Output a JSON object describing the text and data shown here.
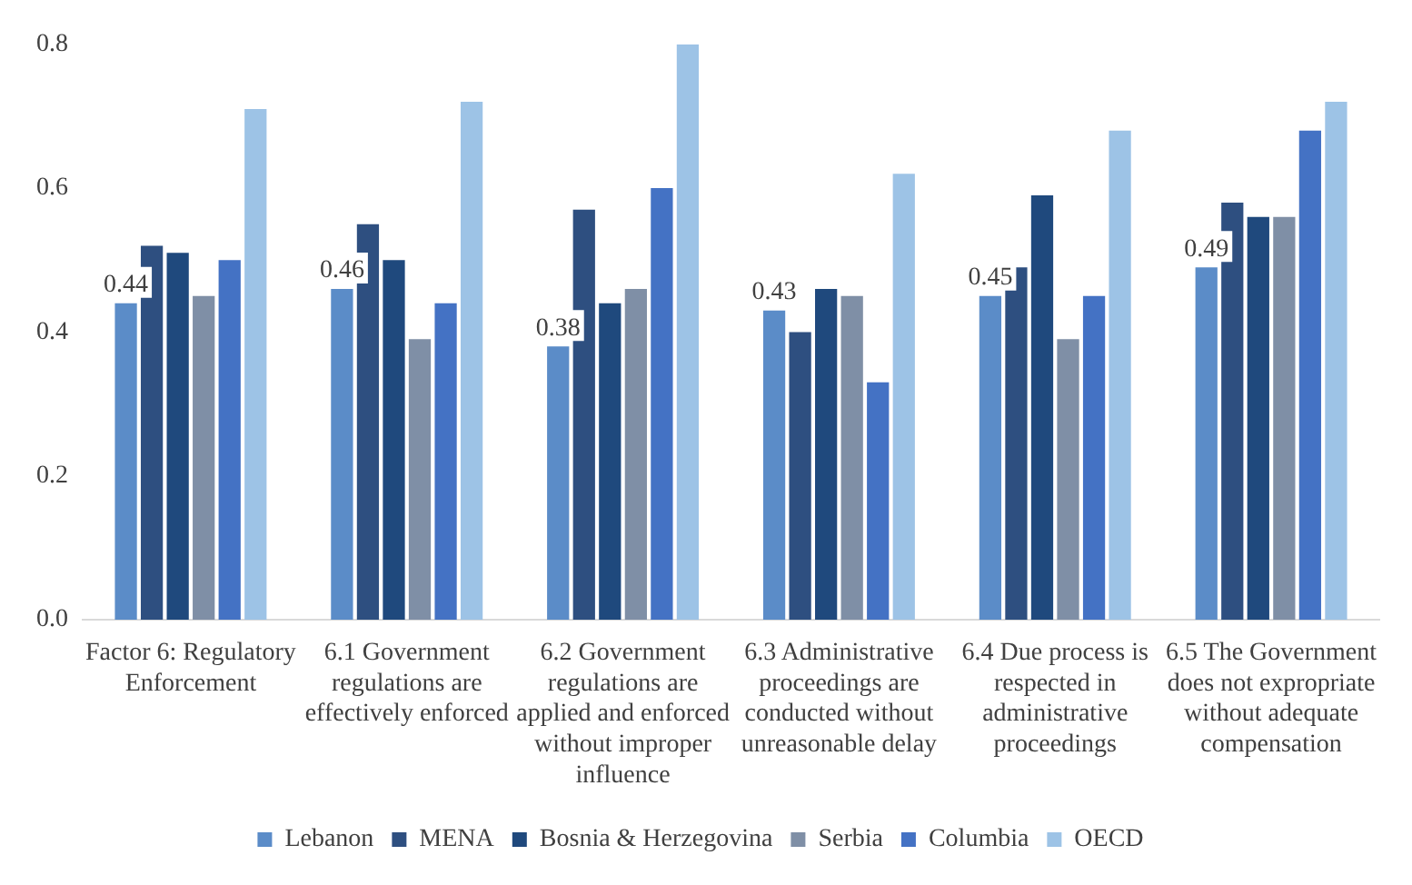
{
  "chart_data": {
    "type": "bar",
    "categories": [
      "Factor 6: Regulatory Enforcement",
      "6.1 Government regulations are effectively enforced",
      "6.2 Government regulations are applied and enforced without improper influence",
      "6.3 Administrative proceedings are conducted without unreasonable delay",
      "6.4 Due process is respected in administrative proceedings",
      "6.5 The Government does not expropriate without adequate compensation"
    ],
    "series": [
      {
        "name": "Lebanon",
        "color": "#5b8cc8",
        "values": [
          0.44,
          0.46,
          0.38,
          0.43,
          0.45,
          0.49
        ],
        "value_labels": [
          "0.44",
          "0.46",
          "0.38",
          "0.43",
          "0.45",
          "0.49"
        ]
      },
      {
        "name": "MENA",
        "color": "#2e4f80",
        "values": [
          0.52,
          0.55,
          0.57,
          0.4,
          0.49,
          0.58
        ]
      },
      {
        "name": "Bosnia & Herzegovina",
        "color": "#1f497d",
        "values": [
          0.51,
          0.5,
          0.44,
          0.46,
          0.59,
          0.56
        ]
      },
      {
        "name": "Serbia",
        "color": "#7f8fa6",
        "values": [
          0.45,
          0.39,
          0.46,
          0.45,
          0.39,
          0.56
        ]
      },
      {
        "name": "Columbia",
        "color": "#4472c4",
        "values": [
          0.5,
          0.44,
          0.6,
          0.33,
          0.45,
          0.68
        ]
      },
      {
        "name": "OECD",
        "color": "#9dc3e6",
        "values": [
          0.71,
          0.72,
          0.8,
          0.62,
          0.68,
          0.72
        ]
      }
    ],
    "ylim": [
      0,
      0.8
    ],
    "yticks": [
      {
        "value": 0,
        "label": "0.0"
      },
      {
        "value": 0.2,
        "label": "0.2"
      },
      {
        "value": 0.4,
        "label": "0.4"
      },
      {
        "value": 0.6,
        "label": "0.6"
      },
      {
        "value": 0.8,
        "label": "0.8"
      }
    ],
    "grid": false,
    "legend": "bottom"
  }
}
